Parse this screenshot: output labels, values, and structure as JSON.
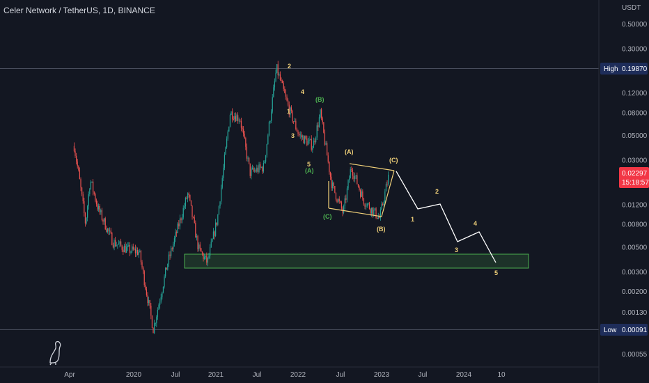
{
  "header": {
    "title": "Celer Network / TetherUS, 1D, BINANCE"
  },
  "price_axis": {
    "unit": "USDT",
    "labels": [
      "0.50000",
      "0.30000",
      "0.12000",
      "0.08000",
      "0.05000",
      "0.03000",
      "0.01200",
      "0.00800",
      "0.00500",
      "0.00300",
      "0.00200",
      "0.00130",
      "0.00055"
    ]
  },
  "time_axis": {
    "labels": [
      "Apr",
      "2020",
      "Jul",
      "2021",
      "Jul",
      "2022",
      "Jul",
      "2023",
      "Jul",
      "2024",
      "10"
    ]
  },
  "high_tag": {
    "label": "High",
    "value": "0.19870"
  },
  "low_tag": {
    "label": "Low",
    "value": "0.00091"
  },
  "last_price": {
    "value": "0.02297",
    "countdown": "15:18:57",
    "color": "#f23645"
  },
  "colors": {
    "up": "#26a69a",
    "down": "#ef5350",
    "wave_yellow": "#f2d27a",
    "wave_green": "#4caf50",
    "projection": "#ffffff",
    "zone": "#4caf50"
  },
  "wave_labels": {
    "w2": "2",
    "w1": "1",
    "w4": "4",
    "w3": "3",
    "w5": "5",
    "gB": "(B)",
    "gA": "(A)",
    "gC": "(C)",
    "yA": "(A)",
    "yC": "(C)",
    "yB": "(B)",
    "p1": "1",
    "p2": "2",
    "p3": "3",
    "p4": "4",
    "p5": "5"
  },
  "chart_data": {
    "type": "candlestick",
    "symbol": "CELRUSDT",
    "exchange": "BINANCE",
    "interval": "1D",
    "y_scale": "log",
    "grid": false,
    "high": 0.1987,
    "low": 0.00091,
    "last": 0.02297,
    "approx_path": [
      {
        "t": "2019-03-25",
        "p": 0.04
      },
      {
        "t": "2019-04-15",
        "p": 0.022
      },
      {
        "t": "2019-05-15",
        "p": 0.008
      },
      {
        "t": "2019-06-05",
        "p": 0.02
      },
      {
        "t": "2019-07-10",
        "p": 0.011
      },
      {
        "t": "2019-09-15",
        "p": 0.0055
      },
      {
        "t": "2019-11-20",
        "p": 0.0047
      },
      {
        "t": "2020-01-10",
        "p": 0.0045
      },
      {
        "t": "2020-03-13",
        "p": 0.00091
      },
      {
        "t": "2020-05-15",
        "p": 0.0035
      },
      {
        "t": "2020-08-15",
        "p": 0.015
      },
      {
        "t": "2020-10-01",
        "p": 0.0048
      },
      {
        "t": "2020-11-10",
        "p": 0.0036
      },
      {
        "t": "2020-12-25",
        "p": 0.009
      },
      {
        "t": "2021-02-20",
        "p": 0.08
      },
      {
        "t": "2021-04-05",
        "p": 0.07
      },
      {
        "t": "2021-05-20",
        "p": 0.023
      },
      {
        "t": "2021-07-20",
        "p": 0.026
      },
      {
        "t": "2021-09-15",
        "p": 0.1987
      },
      {
        "t": "2021-11-10",
        "p": 0.085
      },
      {
        "t": "2021-12-25",
        "p": 0.05
      },
      {
        "t": "2022-02-25",
        "p": 0.04
      },
      {
        "t": "2022-03-30",
        "p": 0.078
      },
      {
        "t": "2022-05-20",
        "p": 0.018
      },
      {
        "t": "2022-07-10",
        "p": 0.01
      },
      {
        "t": "2022-08-15",
        "p": 0.026
      },
      {
        "t": "2022-10-10",
        "p": 0.013
      },
      {
        "t": "2022-12-20",
        "p": 0.009
      },
      {
        "t": "2023-02-01",
        "p": 0.02297
      }
    ],
    "projection": [
      {
        "t": "2023-02-01",
        "p": 0.024
      },
      {
        "t": "2023-05-25",
        "p": 0.011
      },
      {
        "t": "2023-08-25",
        "p": 0.0125
      },
      {
        "t": "2023-12-10",
        "p": 0.0055
      },
      {
        "t": "2024-02-10",
        "p": 0.0069
      },
      {
        "t": "2024-06-05",
        "p": 0.0038
      }
    ],
    "support_zone": {
      "from": "2020-07-15",
      "to": "2024-07-15",
      "top": 0.0044,
      "bottom": 0.0033
    },
    "channel": {
      "top": [
        {
          "t": "2022-08-10",
          "p": 0.029
        },
        {
          "t": "2023-02-01",
          "p": 0.024
        }
      ],
      "bottom": [
        {
          "t": "2022-05-15",
          "p": 0.0106
        },
        {
          "t": "2022-12-15",
          "p": 0.0091
        }
      ]
    }
  }
}
